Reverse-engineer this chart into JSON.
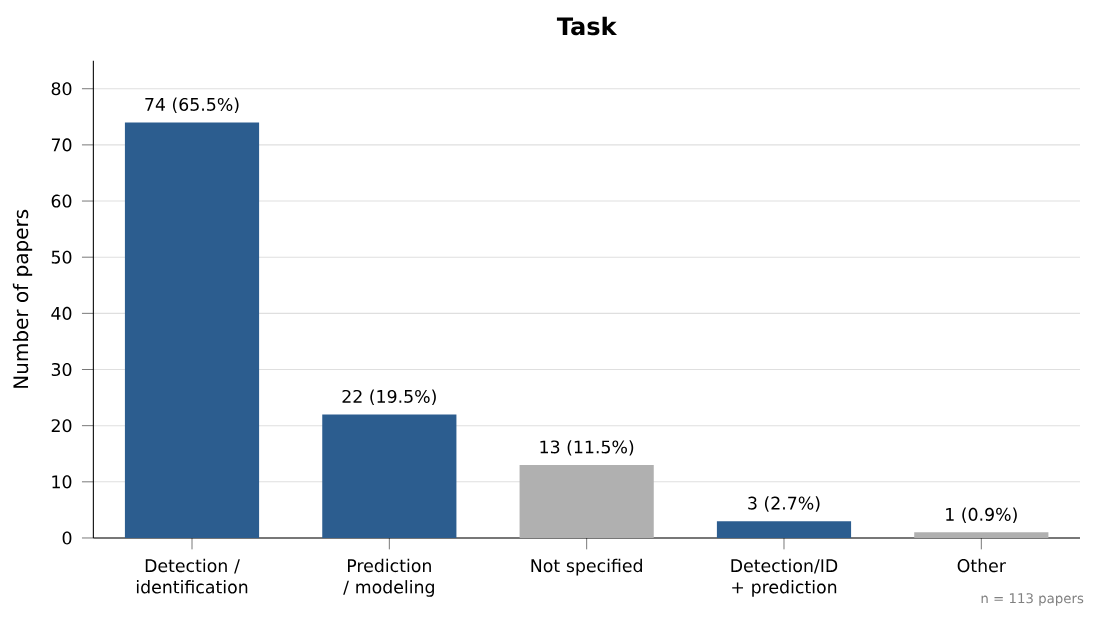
{
  "chart_data": {
    "type": "bar",
    "title": "Task",
    "ylabel": "Number of papers",
    "categories": [
      "Detection / identification",
      "Prediction / modeling",
      "Not specified",
      "Detection/ID + prediction",
      "Other"
    ],
    "values": [
      74,
      22,
      13,
      3,
      1
    ],
    "colors": [
      "#2c5d8f",
      "#2c5d8f",
      "#b0b0b0",
      "#2c5d8f",
      "#b0b0b0"
    ],
    "value_labels": [
      "74 (65.5%)",
      "22 (19.5%)",
      "13 (11.5%)",
      "3 (2.7%)",
      "1 (0.9%)"
    ],
    "ylim": [
      0,
      85
    ],
    "yticks": [
      0,
      10,
      20,
      30,
      40,
      50,
      60,
      70,
      80
    ],
    "grid": "y",
    "annotations": [
      "n = 113 papers"
    ]
  }
}
